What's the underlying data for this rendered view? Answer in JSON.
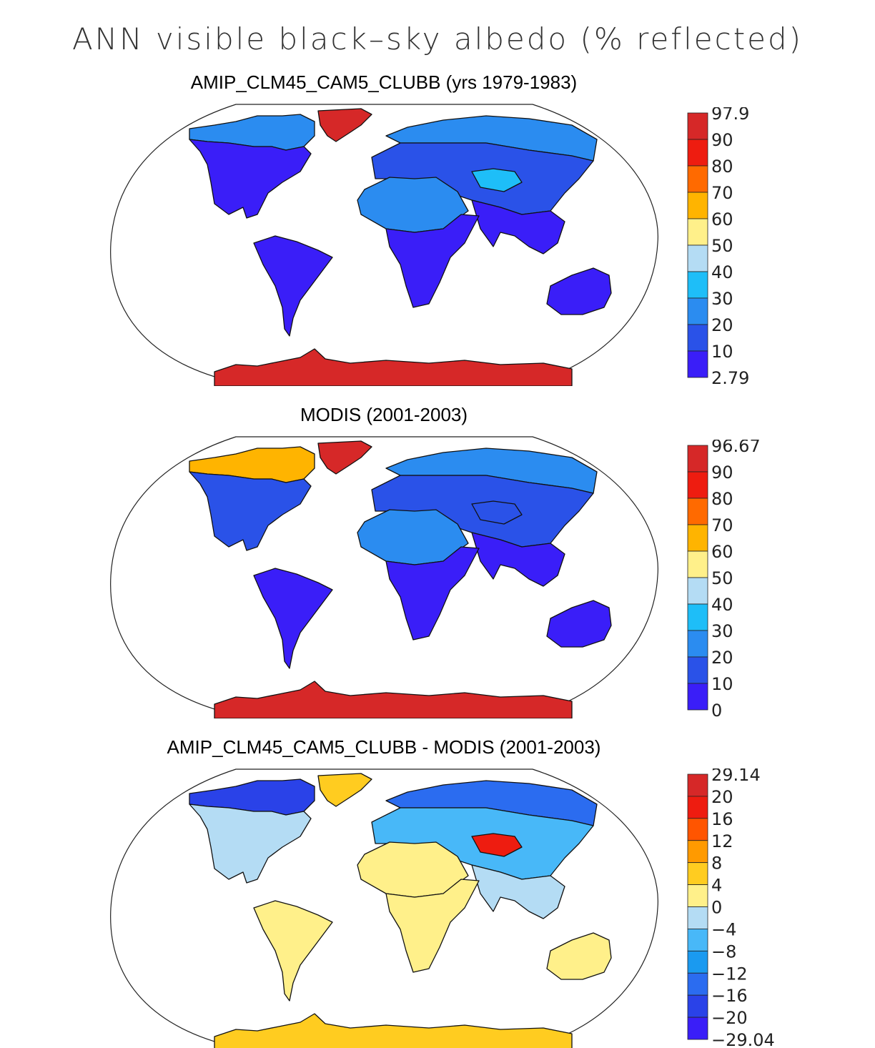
{
  "title": "ANN visible black–sky albedo (% reflected)",
  "panels": [
    {
      "title": "AMIP_CLM45_CAM5_CLUBB (yrs 1979-1983)",
      "field": "model",
      "colorbar": {
        "labels": [
          "97.9",
          "90",
          "80",
          "70",
          "60",
          "50",
          "40",
          "30",
          "20",
          "10",
          "2.79"
        ],
        "colors": [
          "#d62828",
          "#ee1c10",
          "#ff6a00",
          "#ffb400",
          "#fff08a",
          "#b4dcf4",
          "#1ebef8",
          "#2b8cf0",
          "#2a52e8",
          "#3a1ef8"
        ]
      }
    },
    {
      "title": "MODIS (2001-2003)",
      "field": "obs",
      "colorbar": {
        "labels": [
          "96.67",
          "90",
          "80",
          "70",
          "60",
          "50",
          "40",
          "30",
          "20",
          "10",
          "0"
        ],
        "colors": [
          "#d62828",
          "#ee1c10",
          "#ff6a00",
          "#ffb400",
          "#fff08a",
          "#b4dcf4",
          "#1ebef8",
          "#2b8cf0",
          "#2a52e8",
          "#3a1ef8"
        ]
      }
    },
    {
      "title": "AMIP_CLM45_CAM5_CLUBB - MODIS (2001-2003)",
      "field": "diff",
      "colorbar": {
        "labels": [
          "29.14",
          "20",
          "16",
          "12",
          "8",
          "4",
          "0",
          "−4",
          "−8",
          "−12",
          "−16",
          "−20",
          "−29.04"
        ],
        "colors": [
          "#d62828",
          "#ee1c10",
          "#ff5500",
          "#ff9a00",
          "#ffcc20",
          "#fff08a",
          "#b4dcf4",
          "#48b8f8",
          "#1a9af0",
          "#2b6cf0",
          "#2a42e8",
          "#3a1ef8"
        ]
      }
    }
  ],
  "regions": {
    "model": {
      "north_america": "#3a1ef8",
      "canada_north": "#2b8cf0",
      "greenland": "#d62828",
      "south_america": "#3a1ef8",
      "africa_north": "#2b8cf0",
      "africa_south": "#3a1ef8",
      "eurasia": "#2a52e8",
      "eurasia_north": "#2b8cf0",
      "tibet": "#1ebef8",
      "india_se_asia": "#3a1ef8",
      "australia": "#3a1ef8",
      "antarctica": "#d62828"
    },
    "obs": {
      "north_america": "#2a52e8",
      "canada_north": "#ffb400",
      "greenland": "#d62828",
      "south_america": "#3a1ef8",
      "africa_north": "#2b8cf0",
      "africa_south": "#3a1ef8",
      "eurasia": "#2a52e8",
      "eurasia_north": "#2b8cf0",
      "tibet": "#2a52e8",
      "india_se_asia": "#3a1ef8",
      "australia": "#3a1ef8",
      "antarctica": "#d62828"
    },
    "diff": {
      "north_america": "#b4dcf4",
      "canada_north": "#2a42e8",
      "greenland": "#ffcc20",
      "south_america": "#fff08a",
      "africa_north": "#fff08a",
      "africa_south": "#fff08a",
      "eurasia": "#48b8f8",
      "eurasia_north": "#2b6cf0",
      "tibet": "#ee1c10",
      "india_se_asia": "#b4dcf4",
      "australia": "#fff08a",
      "antarctica": "#ffcc20"
    }
  }
}
